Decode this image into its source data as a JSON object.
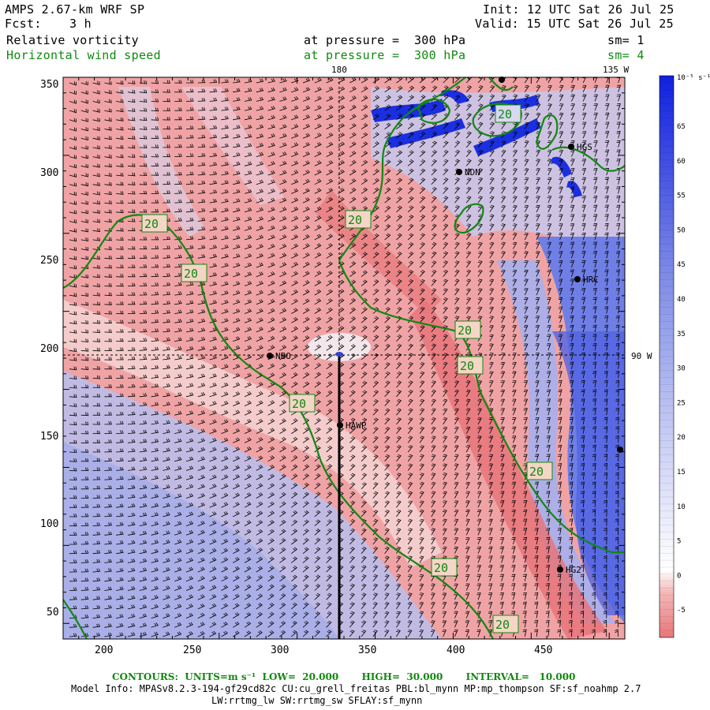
{
  "header": {
    "title": "AMPS 2.67-km WRF SP",
    "fcst_label": "Fcst:",
    "fcst_value": "3 h",
    "init": "Init: 12 UTC Sat 26 Jul 25",
    "valid": "Valid: 15 UTC Sat 26 Jul 25",
    "field1_name": "Relative vorticity",
    "field1_level": "at pressure =  300 hPa",
    "field1_sm": "sm= 1",
    "field2_name": "Horizontal wind speed",
    "field2_level": "at pressure =  300 hPa",
    "field2_sm": "sm= 4"
  },
  "map": {
    "x_ticks": [
      "200",
      "250",
      "300",
      "350",
      "400",
      "450"
    ],
    "y_ticks": [
      "350",
      "300",
      "250",
      "200",
      "150",
      "100",
      "50"
    ],
    "meridian_180": "180",
    "meridian_135": "135 W",
    "parallel_90": "90 W",
    "stations": [
      "NBO",
      "NDN",
      "HRC",
      "HGS",
      "HAWP",
      "HG2"
    ],
    "contour_label": "20",
    "colors": {
      "positive": "#e8767a",
      "negative": "#5a6fe0",
      "contour": "#118811",
      "strong": "#1b2fe0"
    }
  },
  "colorbar": {
    "unit": "10⁻⁵ s⁻¹",
    "labels": [
      "65",
      "60",
      "55",
      "50",
      "45",
      "40",
      "35",
      "30",
      "25",
      "20",
      "15",
      "10",
      "5",
      "0",
      "-5"
    ]
  },
  "footer": {
    "contours": "CONTOURS:  UNITS=m s⁻¹  LOW=  20.000       HIGH=  30.000       INTERVAL=   10.000",
    "model_info_1": "Model Info: MPASv8.2.3-194-gf29cd82c CU:cu_grell_freitas PBL:bl_mynn MP:mp_thompson SF:sf_noahmp 2.7",
    "model_info_2": "LW:rrtmg_lw SW:rrtmg_sw SFLAY:sf_mynn"
  }
}
